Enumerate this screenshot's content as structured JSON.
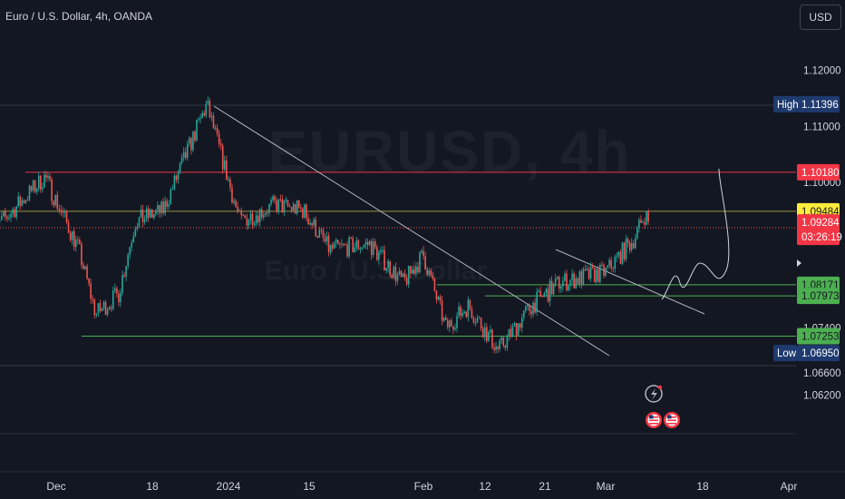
{
  "header": {
    "title": "Euro / U.S. Dollar, 4h, OANDA",
    "currency_button": "USD"
  },
  "watermark": {
    "symbol": "EURUSD, 4h",
    "name": "Euro / U.S. Dollar"
  },
  "colors": {
    "background": "#131722",
    "up": "#26a69a",
    "down": "#ef5350",
    "resistance_line": "#f23645",
    "support_line": "#4caf50",
    "yellow_level": "#ffeb3b",
    "trendline": "#b2b5be"
  },
  "chart_data": {
    "type": "candlestick",
    "symbol": "EURUSD",
    "interval": "4h",
    "y_axis": {
      "tick_labels": [
        "1.12000",
        "1.11000",
        "1.10000",
        "1.07400",
        "1.06600",
        "1.06200"
      ],
      "tick_values": [
        1.12,
        1.11,
        1.1,
        1.074,
        1.066,
        1.062
      ]
    },
    "x_axis": {
      "tick_labels": [
        "Dec",
        "18",
        "2024",
        "15",
        "Feb",
        "12",
        "21",
        "Mar",
        "18",
        "Apr"
      ],
      "tick_dates": [
        "2023-12-01",
        "2023-12-18",
        "2024-01-01",
        "2024-01-15",
        "2024-02-01",
        "2024-02-12",
        "2024-02-21",
        "2024-03-01",
        "2024-03-18",
        "2024-04-01"
      ]
    },
    "ohlc_anchors": [
      {
        "date": "2023-11-20",
        "close": 1.0915
      },
      {
        "date": "2023-11-29",
        "close": 1.101
      },
      {
        "date": "2023-12-05",
        "close": 1.088
      },
      {
        "date": "2023-12-08",
        "close": 1.0765
      },
      {
        "date": "2023-12-12",
        "close": 1.08
      },
      {
        "date": "2023-12-15",
        "close": 1.093
      },
      {
        "date": "2023-12-20",
        "close": 1.095
      },
      {
        "date": "2023-12-28",
        "close": 1.1139
      },
      {
        "date": "2024-01-03",
        "close": 1.093
      },
      {
        "date": "2024-01-09",
        "close": 1.096
      },
      {
        "date": "2024-01-14",
        "close": 1.095
      },
      {
        "date": "2024-01-18",
        "close": 1.088
      },
      {
        "date": "2024-01-24",
        "close": 1.089
      },
      {
        "date": "2024-01-29",
        "close": 1.082
      },
      {
        "date": "2024-02-01",
        "close": 1.087
      },
      {
        "date": "2024-02-05",
        "close": 1.074
      },
      {
        "date": "2024-02-09",
        "close": 1.078
      },
      {
        "date": "2024-02-14",
        "close": 1.07
      },
      {
        "date": "2024-02-19",
        "close": 1.078
      },
      {
        "date": "2024-02-23",
        "close": 1.082
      },
      {
        "date": "2024-03-01",
        "close": 1.084
      },
      {
        "date": "2024-03-06",
        "close": 1.09
      },
      {
        "date": "2024-03-08",
        "close": 1.0945
      },
      {
        "date": "2024-03-08 12:00",
        "close": 1.09284
      }
    ],
    "price_labels": [
      {
        "label": "High",
        "value": "1.11396",
        "kind": "high"
      },
      {
        "label": "",
        "value": "1.10180",
        "kind": "resistance"
      },
      {
        "label": "",
        "value": "1.09484",
        "kind": "yellow"
      },
      {
        "label": "",
        "value": "1.09284",
        "kind": "current",
        "countdown": "03:26:19"
      },
      {
        "label": "",
        "value": "1.08171",
        "kind": "support"
      },
      {
        "label": "",
        "value": "1.07973",
        "kind": "support"
      },
      {
        "label": "",
        "value": "1.07253",
        "kind": "support"
      },
      {
        "label": "Low",
        "value": "1.06950",
        "kind": "low"
      }
    ],
    "horizontal_levels": [
      {
        "value": 1.1018,
        "color": "red"
      },
      {
        "value": 1.09484,
        "color": "yellow"
      },
      {
        "value": 1.08171,
        "color": "green"
      },
      {
        "value": 1.07973,
        "color": "green"
      },
      {
        "value": 1.07253,
        "color": "green"
      }
    ]
  }
}
